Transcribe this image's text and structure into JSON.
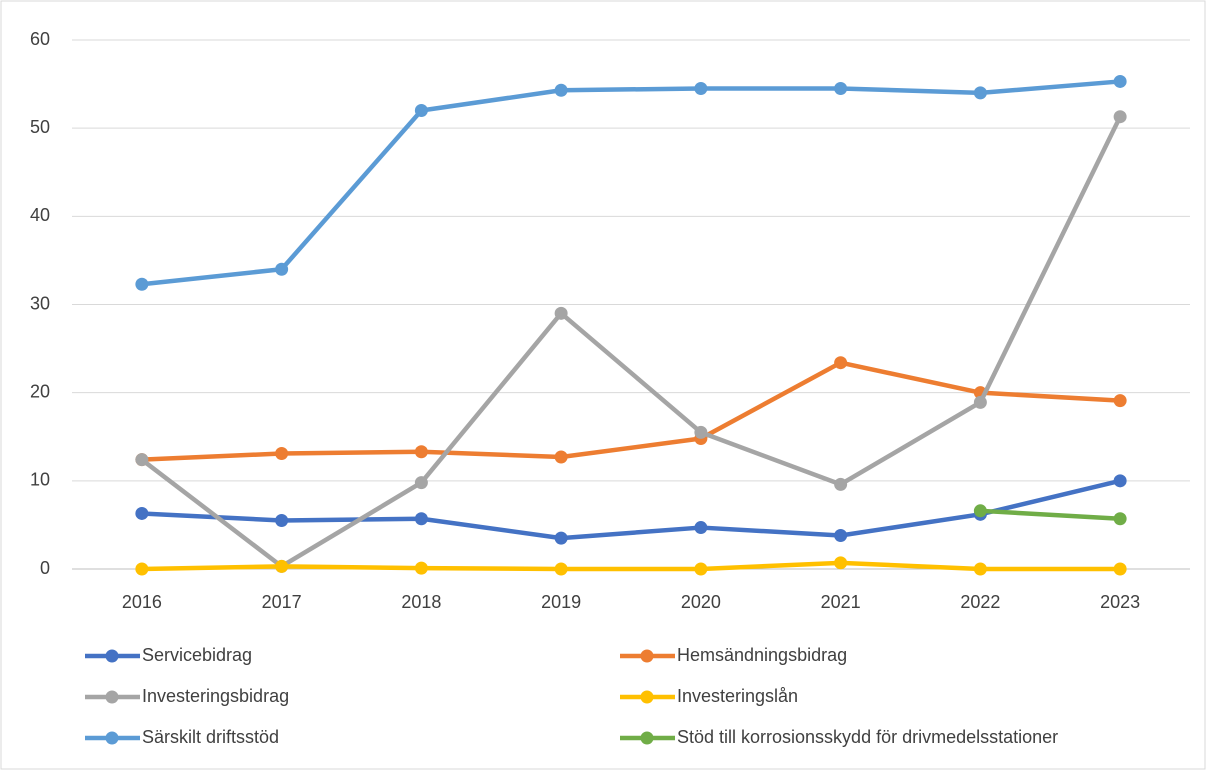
{
  "chart_data": {
    "type": "line",
    "categories": [
      "2016",
      "2017",
      "2018",
      "2019",
      "2020",
      "2021",
      "2022",
      "2023"
    ],
    "series": [
      {
        "name": "Servicebidrag",
        "color": "#4472c4",
        "values": [
          6.3,
          5.5,
          5.7,
          3.5,
          4.7,
          3.8,
          6.2,
          10
        ]
      },
      {
        "name": "Hemsändningsbidrag",
        "color": "#ed7d31",
        "values": [
          12.4,
          13.1,
          13.3,
          12.7,
          14.8,
          23.4,
          20,
          19.1
        ]
      },
      {
        "name": "Investeringsbidrag",
        "color": "#a5a5a5",
        "values": [
          12.4,
          0.3,
          9.8,
          29,
          15.5,
          9.6,
          18.9,
          51.3
        ]
      },
      {
        "name": "Investeringslån",
        "color": "#ffc000",
        "values": [
          0,
          0.3,
          0.1,
          0,
          0,
          0.7,
          0,
          0
        ]
      },
      {
        "name": "Särskilt driftsstöd",
        "color": "#5b9bd5",
        "values": [
          32.3,
          34,
          52,
          54.3,
          54.5,
          54.5,
          54,
          55.3
        ]
      },
      {
        "name": "Stöd till korrosionsskydd för drivmedelsstationer",
        "color": "#70ad47",
        "values": [
          null,
          null,
          null,
          null,
          null,
          null,
          6.6,
          5.7
        ]
      }
    ],
    "ylim": [
      0,
      60
    ],
    "yticks": [
      0,
      10,
      20,
      30,
      40,
      50,
      60
    ],
    "grid": true,
    "legend": "bottom"
  }
}
